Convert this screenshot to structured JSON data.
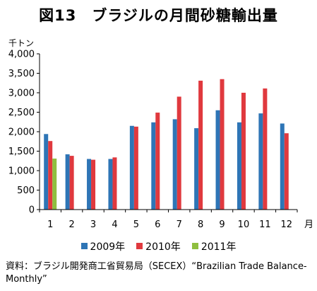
{
  "title": "図13　ブラジルの月間砂糖輸出量",
  "unit_label": "千トン",
  "source": "資料：ブラジル開発商工省貿易局（SECEX）“Brazilian Trade Balance-Monthly”",
  "chart_data": {
    "type": "bar",
    "title": "図13　ブラジルの月間砂糖輸出量",
    "xlabel": "月",
    "ylabel": "千トン",
    "categories": [
      "1",
      "2",
      "3",
      "4",
      "5",
      "6",
      "7",
      "8",
      "9",
      "10",
      "11",
      "12"
    ],
    "ylim": [
      0,
      4000
    ],
    "yticks": [
      0,
      500,
      1000,
      1500,
      2000,
      2500,
      3000,
      3500,
      4000
    ],
    "ytick_labels": [
      "0",
      "500",
      "1,000",
      "1,500",
      "2,000",
      "2,500",
      "3,000",
      "3,500",
      "4,000"
    ],
    "grid": false,
    "legend_position": "bottom",
    "series": [
      {
        "name": "2009年",
        "color": "#2e75b6",
        "values": [
          1940,
          1420,
          1300,
          1300,
          2150,
          2240,
          2320,
          2090,
          2550,
          2240,
          2470,
          2210
        ]
      },
      {
        "name": "2010年",
        "color": "#e0393e",
        "values": [
          1760,
          1380,
          1280,
          1340,
          2130,
          2490,
          2900,
          3310,
          3350,
          3000,
          3110,
          1960
        ]
      },
      {
        "name": "2011年",
        "color": "#8fbf3f",
        "values": [
          1310,
          null,
          null,
          null,
          null,
          null,
          null,
          null,
          null,
          null,
          null,
          null
        ]
      }
    ]
  }
}
